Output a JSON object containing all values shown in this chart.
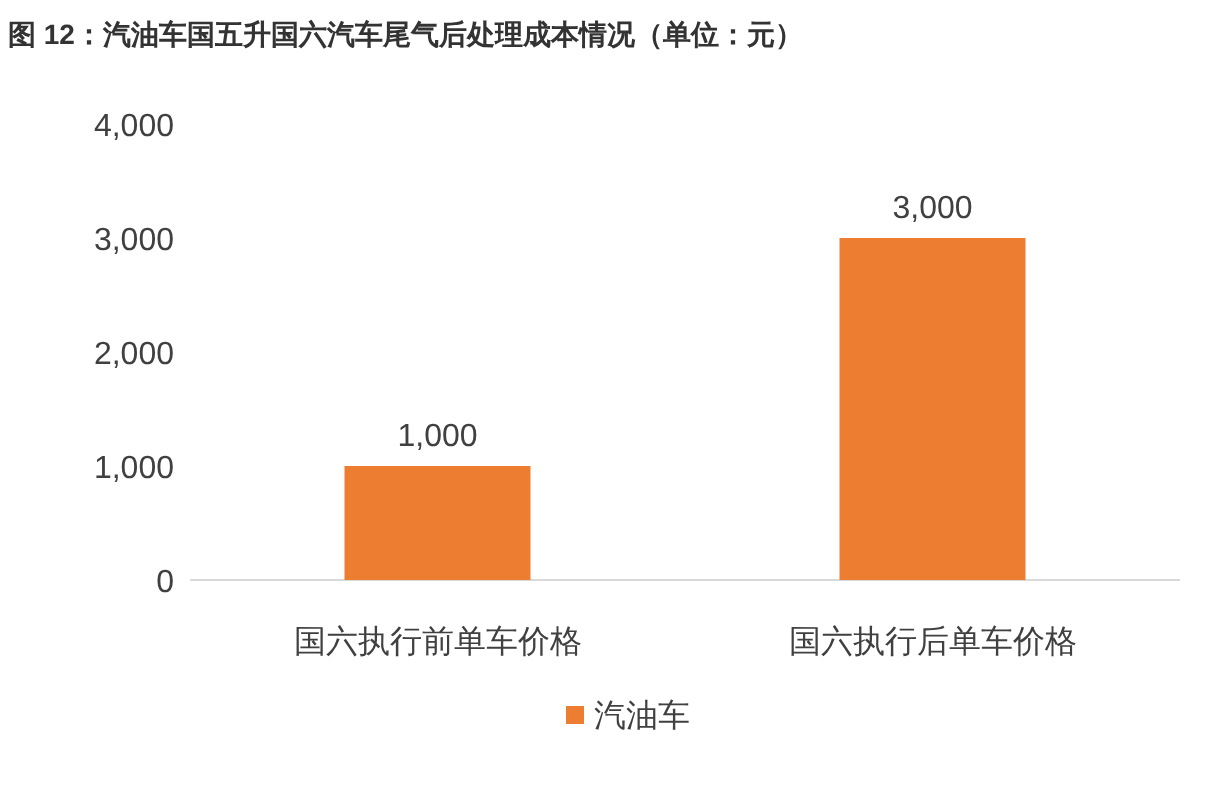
{
  "chart_data": {
    "type": "bar",
    "title": "图 12：汽油车国五升国六汽车尾气后处理成本情况（单位：元）",
    "categories": [
      "国六执行前单车价格",
      "国六执行后单车价格"
    ],
    "series": [
      {
        "name": "汽油车",
        "color": "#ed7d31",
        "values": [
          1000,
          3000
        ],
        "value_labels": [
          "1,000",
          "3,000"
        ]
      }
    ],
    "ylim": [
      0,
      4000
    ],
    "yticks": [
      {
        "value": 0,
        "label": "0"
      },
      {
        "value": 1000,
        "label": "1,000"
      },
      {
        "value": 2000,
        "label": "2,000"
      },
      {
        "value": 3000,
        "label": "3,000"
      },
      {
        "value": 4000,
        "label": "4,000"
      }
    ],
    "legend": "bottom",
    "grid": false
  }
}
